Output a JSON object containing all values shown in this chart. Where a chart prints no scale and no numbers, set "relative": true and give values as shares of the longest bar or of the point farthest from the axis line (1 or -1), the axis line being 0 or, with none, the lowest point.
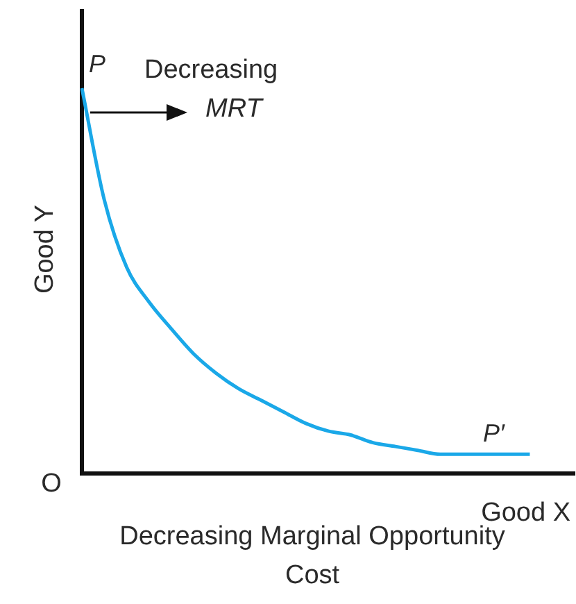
{
  "chart_data": {
    "type": "line",
    "relative": true,
    "xlabel": "Good X",
    "ylabel": "Good Y",
    "categories": [
      null,
      null,
      null,
      null,
      null,
      null,
      null,
      null,
      null,
      null,
      null,
      null,
      null,
      null,
      null,
      null,
      null,
      null,
      null,
      null,
      null,
      null,
      null
    ],
    "series": [
      {
        "color": "#1aa8e8",
        "values": [
          1.0,
          0.71,
          0.535,
          0.445,
          0.375,
          0.31,
          0.26,
          0.22,
          0.19,
          0.16,
          0.13,
          0.11,
          0.1,
          0.08,
          0.07,
          0.06,
          0.05,
          0.05,
          0.05,
          0.05,
          0.05,
          null,
          null
        ]
      }
    ],
    "annotations": [
      "P",
      "Decreasing MRT",
      "P′",
      "O",
      "Decreasing Marginal Opportunity Cost"
    ]
  }
}
